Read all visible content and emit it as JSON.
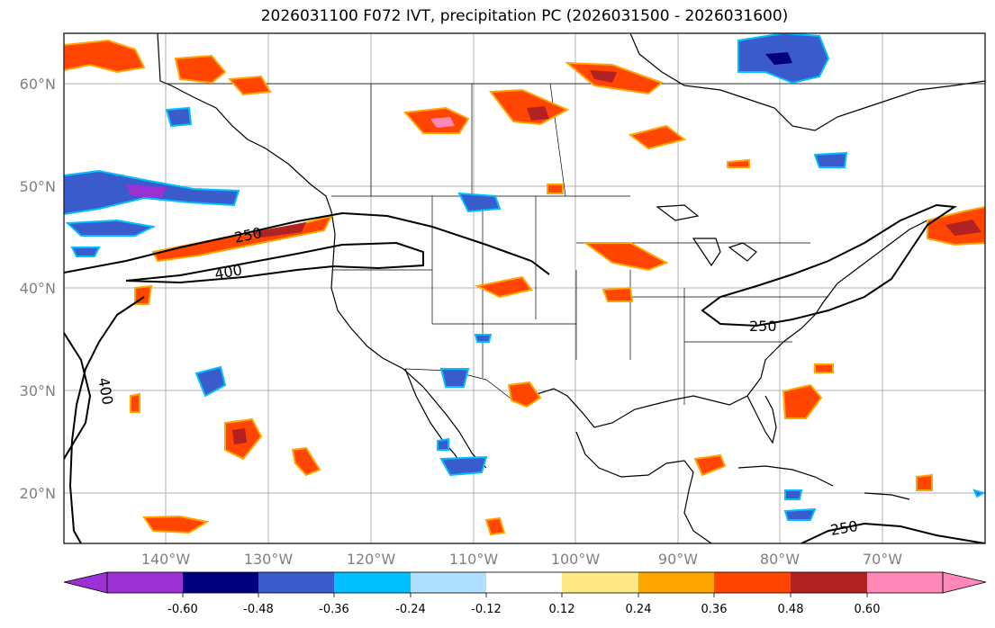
{
  "title": "2026031100 F072 IVT, precipitation PC (2026031500 - 2026031600)",
  "lat_labels": [
    "60°N",
    "50°N",
    "40°N",
    "30°N",
    "20°N"
  ],
  "lon_labels": [
    "140°W",
    "130°W",
    "120°W",
    "110°W",
    "100°W",
    "90°W",
    "80°W",
    "70°W"
  ],
  "colorbar": {
    "tick_labels": [
      "-0.60",
      "-0.48",
      "-0.36",
      "-0.24",
      "-0.12",
      "0.12",
      "0.24",
      "0.36",
      "0.48",
      "0.60"
    ],
    "colors": [
      "#9b30d4",
      "#00007f",
      "#3a5bcc",
      "#00bfff",
      "#b0e0ff",
      "#ffffff",
      "#ffe985",
      "#ffa500",
      "#ff4500",
      "#b22222",
      "#ff88b8"
    ]
  },
  "contour_labels": {
    "a": "250",
    "b": "400",
    "c": "400",
    "d": "250",
    "e": "250"
  }
}
